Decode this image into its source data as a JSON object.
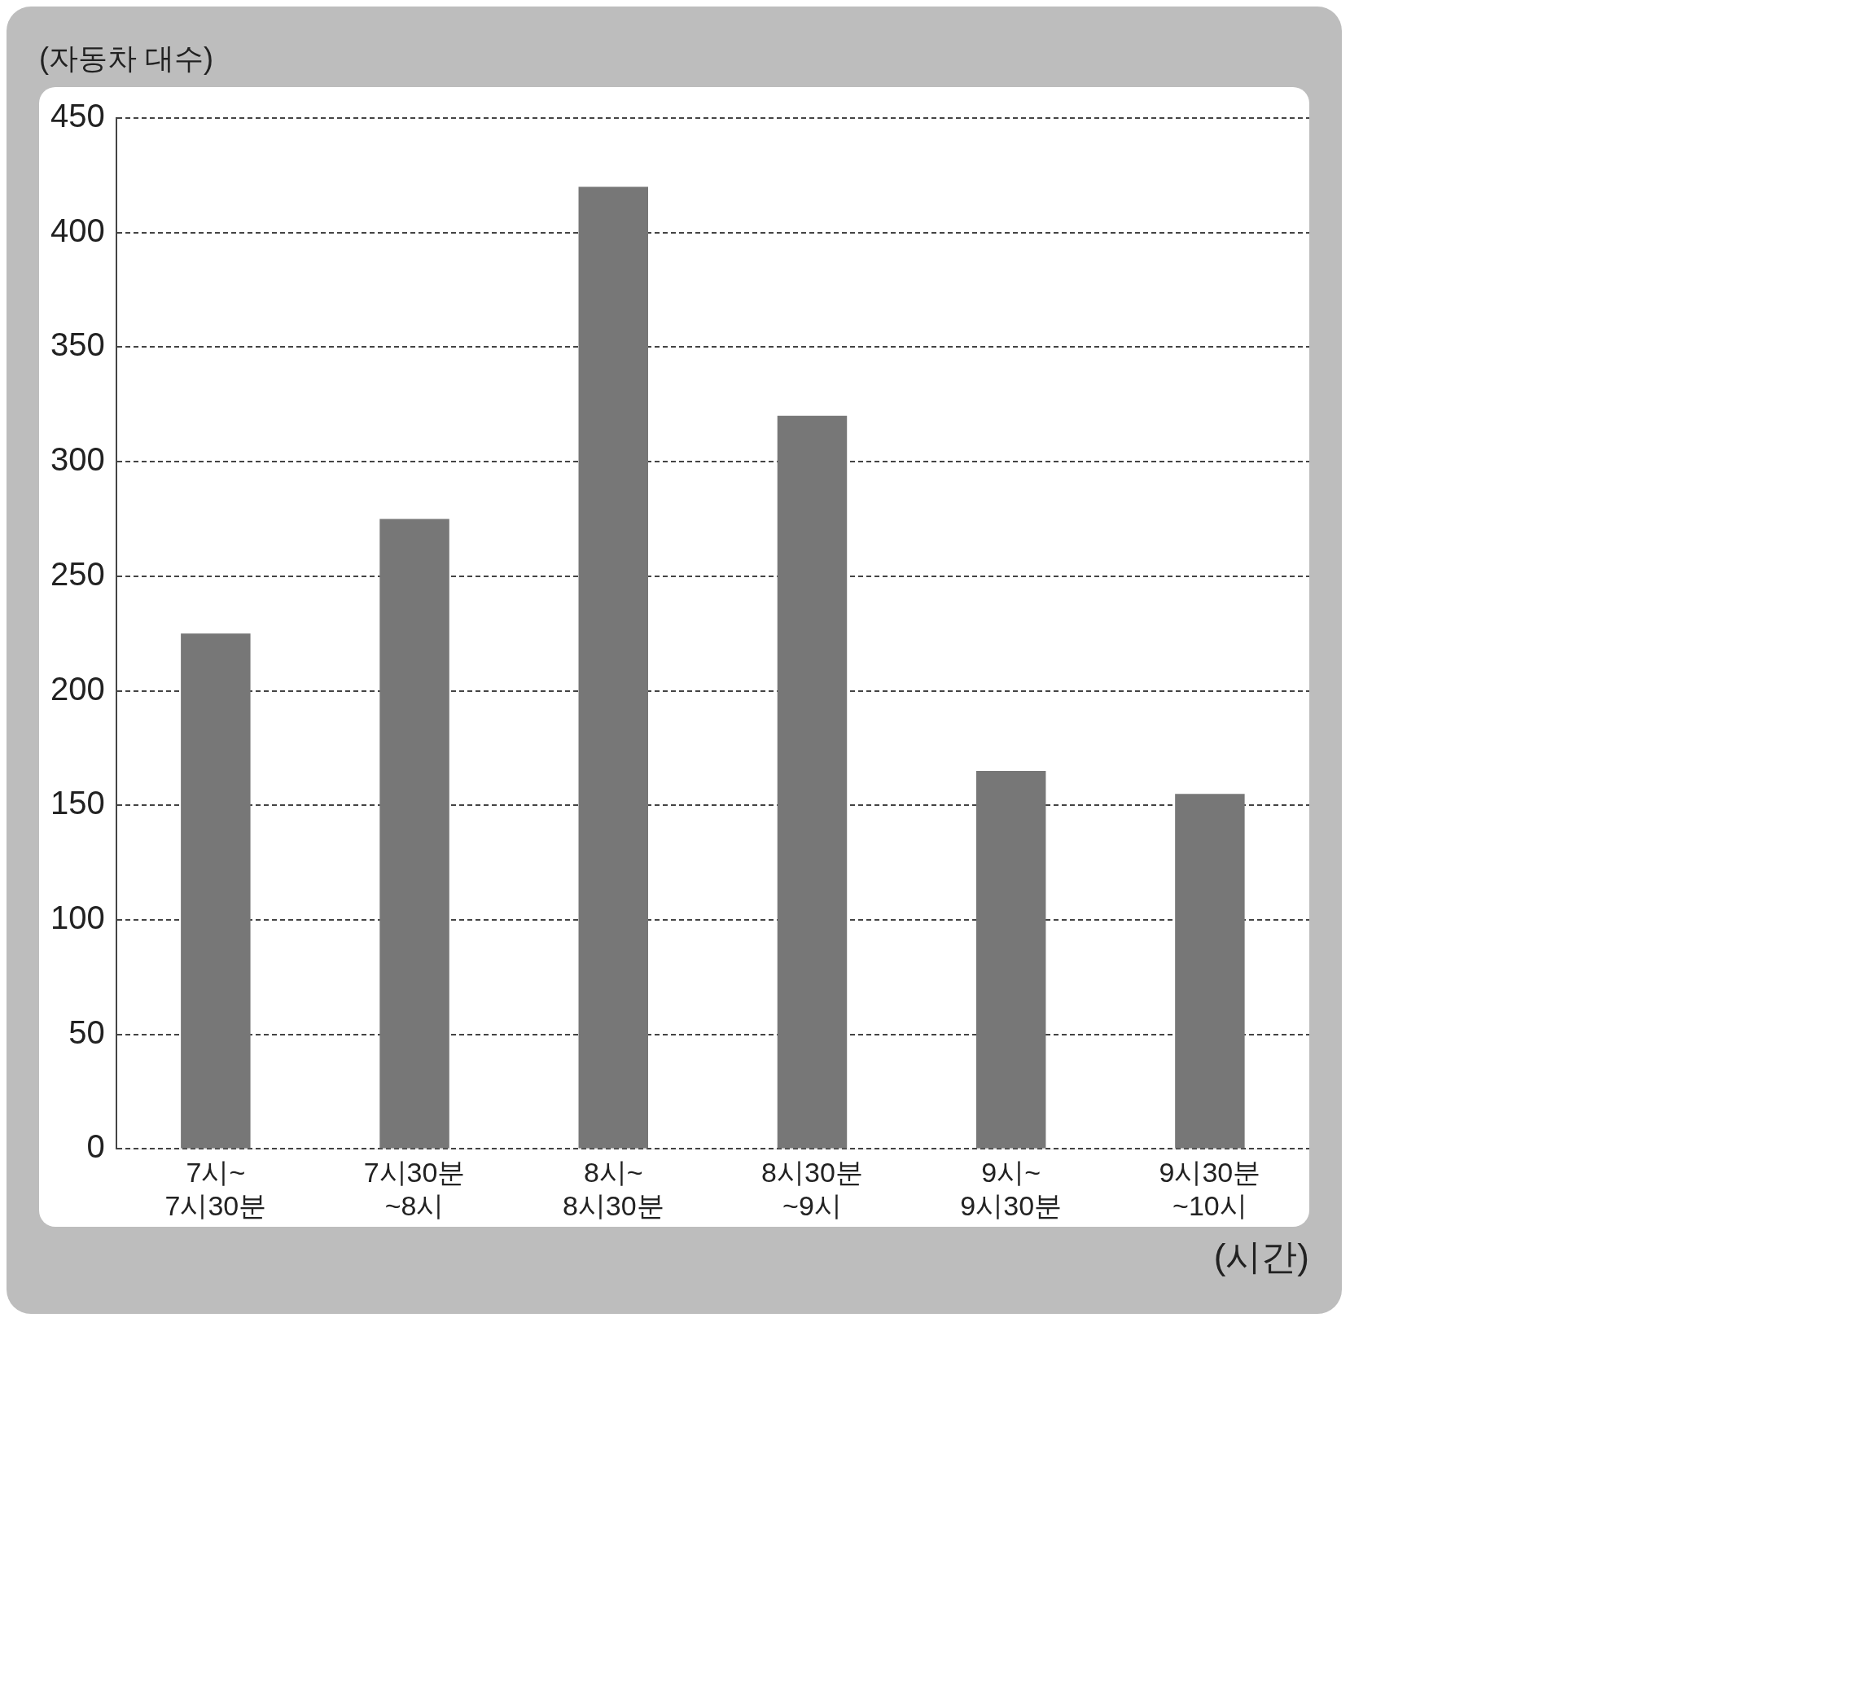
{
  "chart_data": {
    "type": "bar",
    "ylabel": "(자동차 대수)",
    "xlabel": "(시간)",
    "categories": [
      "7시~\n7시30분",
      "7시30분\n~8시",
      "8시~\n8시30분",
      "8시30분\n~9시",
      "9시~\n9시30분",
      "9시30분\n~10시"
    ],
    "values": [
      225,
      275,
      420,
      320,
      165,
      155
    ],
    "color": "#777777",
    "ylim": [
      0,
      450
    ],
    "yticks": [
      0,
      50,
      100,
      150,
      200,
      250,
      300,
      350,
      400,
      450
    ],
    "grid": "y",
    "line_style": "dashed"
  }
}
